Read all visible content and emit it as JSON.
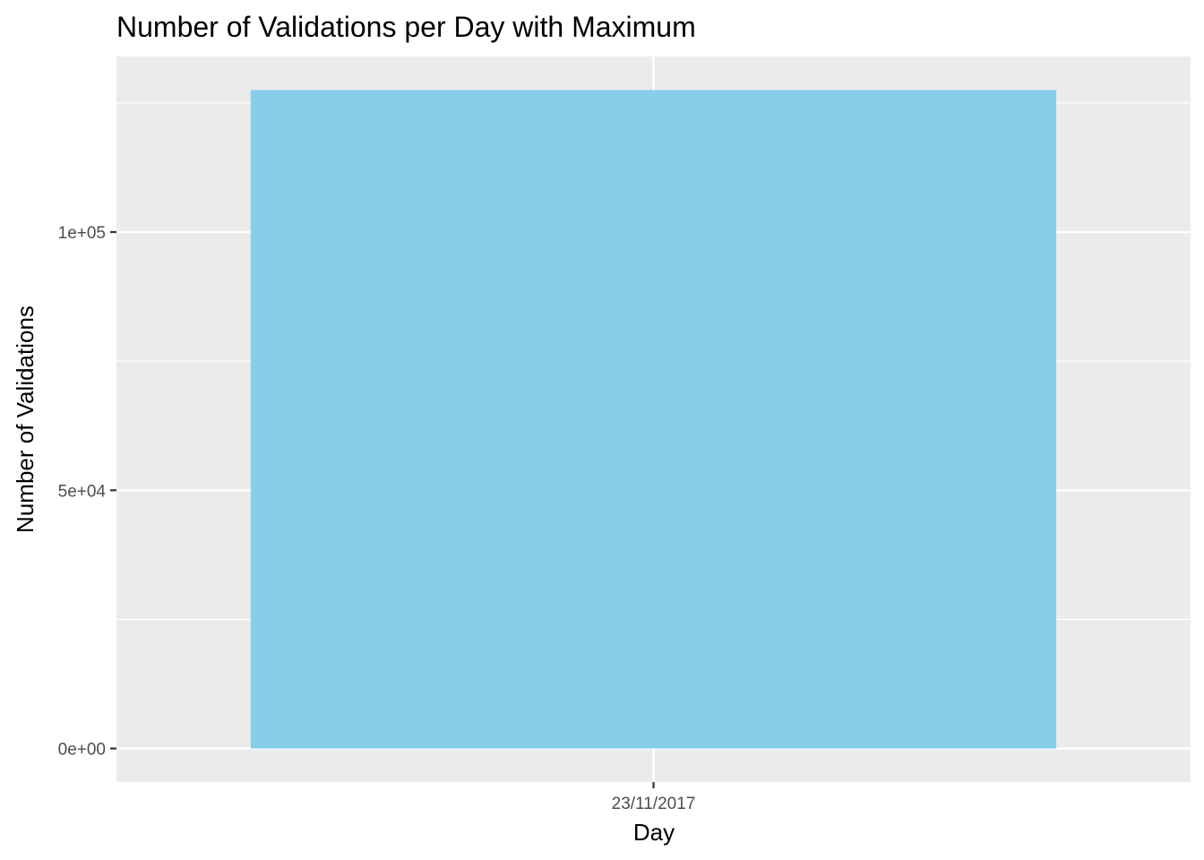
{
  "chart_data": {
    "type": "bar",
    "title": "Number of Validations per Day with Maximum",
    "xlabel": "Day",
    "ylabel": "Number of Validations",
    "categories": [
      "23/11/2017"
    ],
    "values": [
      127500
    ],
    "ylim": [
      -6500,
      134000
    ],
    "y_ticks": [
      0,
      50000,
      100000
    ],
    "y_tick_labels": [
      "0e+00",
      "5e+04",
      "1e+05"
    ],
    "bar_color": "#87CEEB",
    "panel_color": "#EBEBEB",
    "grid": true,
    "legend": "none"
  }
}
